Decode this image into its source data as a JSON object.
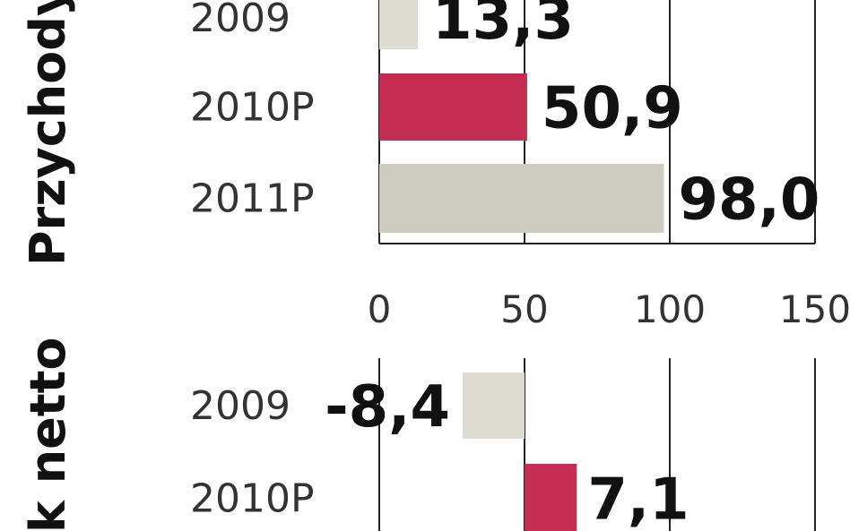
{
  "chart_data": [
    {
      "type": "bar",
      "orientation": "horizontal",
      "title": "Przychody",
      "categories": [
        "2009",
        "2010P",
        "2011P"
      ],
      "values": [
        13.3,
        50.9,
        98.0
      ],
      "value_labels": [
        "13,3",
        "50,9",
        "98,0"
      ],
      "colors": [
        "#dedbd3",
        "#c42c52",
        "#cfccc4"
      ],
      "xlim": [
        0,
        150
      ],
      "xticks": [
        0,
        50,
        100,
        150
      ],
      "xtick_labels": [
        "0",
        "50",
        "100",
        "150"
      ],
      "grid": true
    },
    {
      "type": "bar",
      "orientation": "horizontal",
      "title": "ik netto",
      "categories": [
        "2009",
        "2010P"
      ],
      "values": [
        -8.4,
        7.1
      ],
      "value_labels": [
        "-8,4",
        "7,1"
      ],
      "colors": [
        "#dedbd3",
        "#c42c52"
      ],
      "xlim": [
        -15,
        35
      ],
      "grid": true
    }
  ]
}
